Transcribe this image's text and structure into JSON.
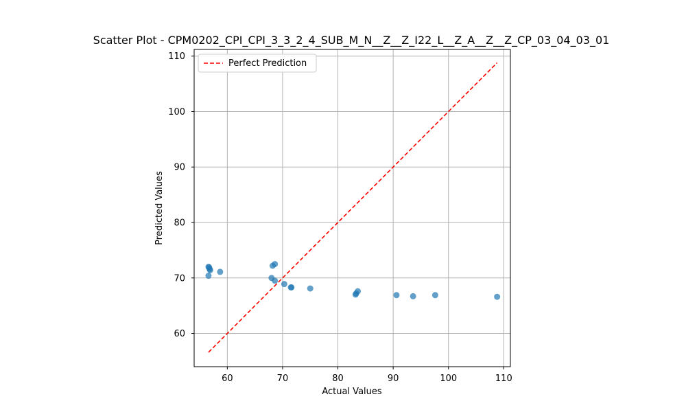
{
  "chart_data": {
    "type": "scatter",
    "title": "Scatter Plot - CPM0202_CPI_CPI_3_3_2_4_SUB_M_N__Z__Z_I22_L__Z_A__Z__Z_CP_03_04_03_01",
    "xlabel": "Actual Values",
    "ylabel": "Predicted Values",
    "xlim": [
      54.0,
      111.2
    ],
    "ylim": [
      54.0,
      111.2
    ],
    "xticks": [
      60,
      70,
      80,
      90,
      100,
      110
    ],
    "yticks": [
      60,
      70,
      80,
      90,
      100,
      110
    ],
    "grid": true,
    "legend": {
      "placement": "top-left",
      "entries": [
        "Perfect Prediction"
      ]
    },
    "series": [
      {
        "kind": "points",
        "color": "#1f77b4",
        "x": [
          56.6,
          56.7,
          56.8,
          56.9,
          56.6,
          58.7,
          68.2,
          68.6,
          68.0,
          68.6,
          70.3,
          71.5,
          71.6,
          75.0,
          83.2,
          83.3,
          83.6,
          90.6,
          93.6,
          97.6,
          108.8
        ],
        "y": [
          72.0,
          71.9,
          71.6,
          71.4,
          70.4,
          71.1,
          72.2,
          72.5,
          70.0,
          69.5,
          68.9,
          68.3,
          68.3,
          68.1,
          67.0,
          67.2,
          67.6,
          66.9,
          66.7,
          66.9,
          66.6
        ]
      },
      {
        "kind": "line",
        "name": "Perfect Prediction",
        "color": "#ff0000",
        "dashed": true,
        "x": [
          56.6,
          108.8
        ],
        "y": [
          56.6,
          108.8
        ]
      }
    ]
  }
}
